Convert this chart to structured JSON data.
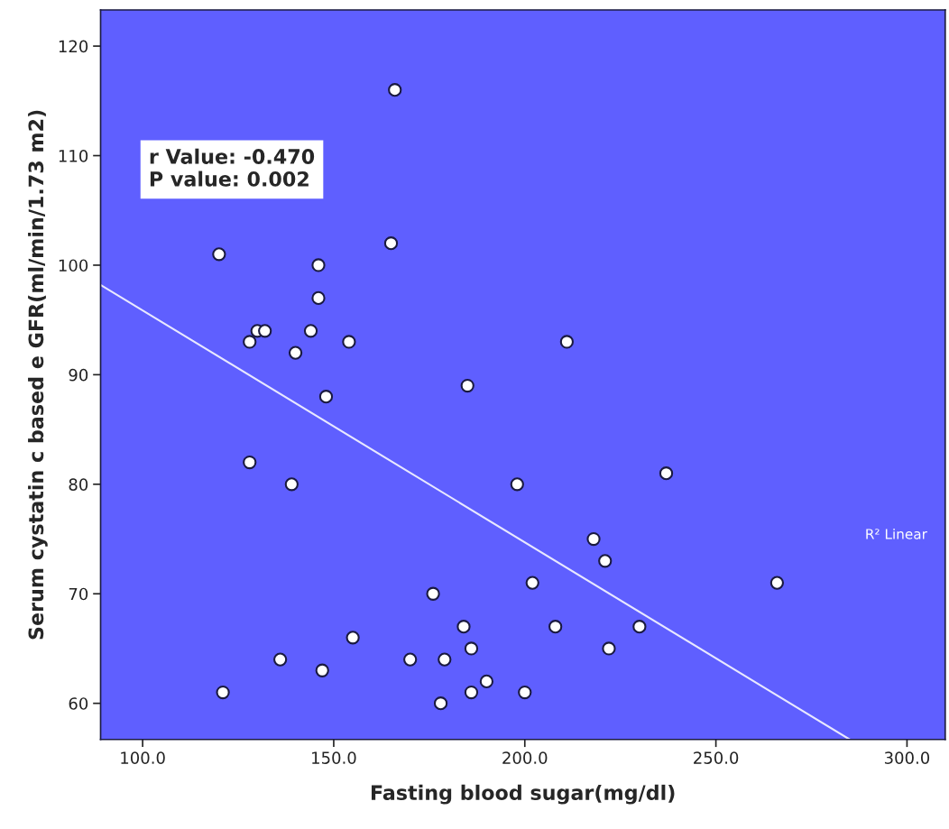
{
  "chart_data": {
    "type": "scatter",
    "xlabel": "Fasting blood sugar(mg/dl)",
    "ylabel": "Serum cystatin c based e GFR(ml/min/1.73 m2)",
    "xlim": [
      89,
      310
    ],
    "ylim": [
      56.7,
      123.3
    ],
    "xticks": [
      {
        "value": 100,
        "label": "100.0"
      },
      {
        "value": 150,
        "label": "150.0"
      },
      {
        "value": 200,
        "label": "200.0"
      },
      {
        "value": 250,
        "label": "250.0"
      },
      {
        "value": 300,
        "label": "300.0"
      }
    ],
    "yticks": [
      60,
      70,
      80,
      90,
      100,
      110,
      120
    ],
    "grid": false,
    "legend": false,
    "series": [
      {
        "marker": "circle",
        "color": "#ffffff",
        "x": [
          120,
          121,
          128,
          128,
          130,
          132,
          136,
          139,
          140,
          144,
          146,
          146,
          147,
          148,
          154,
          155,
          165,
          166,
          170,
          176,
          178,
          179,
          184,
          185,
          186,
          186,
          190,
          198,
          200,
          202,
          208,
          211,
          218,
          221,
          222,
          230,
          237,
          266
        ],
        "values": [
          101,
          61,
          93,
          82,
          94,
          94,
          64,
          80,
          92,
          94,
          100,
          97,
          63,
          88,
          93,
          66,
          102,
          116,
          64,
          70,
          60,
          64,
          67,
          89,
          65,
          61,
          62,
          80,
          61,
          71,
          67,
          93,
          75,
          73,
          65,
          67,
          81,
          71
        ]
      },
      {
        "type": "line",
        "color": "#e8e8ff",
        "x": [
          89,
          285
        ],
        "values": [
          98.2,
          56.7
        ]
      }
    ],
    "annotations": [
      "r Value: -0.470\nP value: 0.002",
      "R² Linear"
    ]
  }
}
